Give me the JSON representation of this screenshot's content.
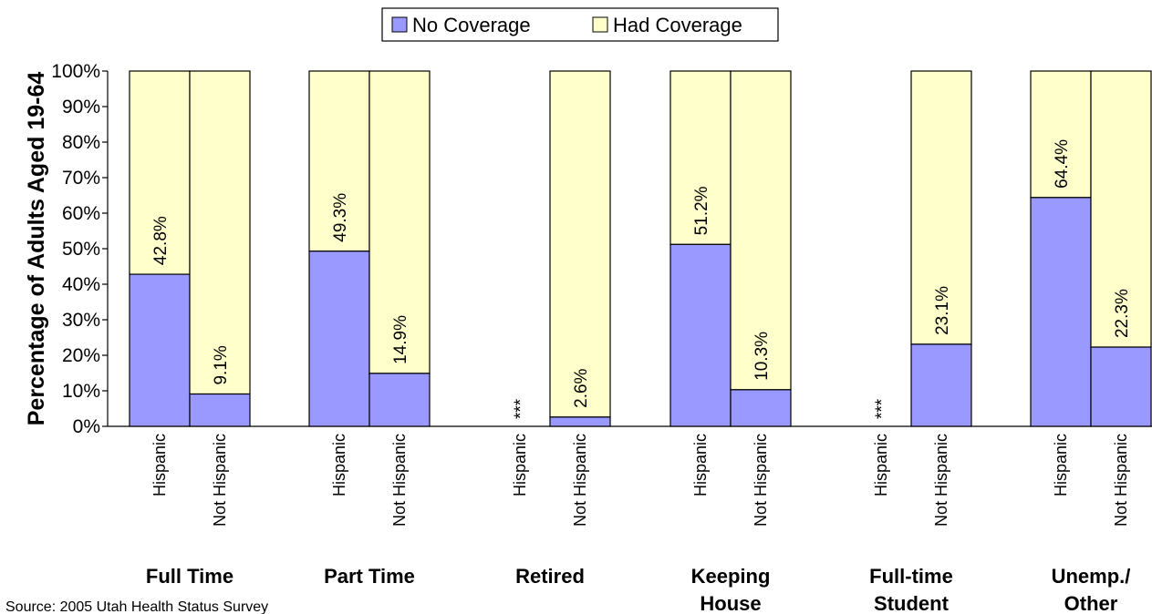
{
  "chart_data": {
    "type": "bar",
    "stacked": true,
    "ylabel": "Percentage of Adults Aged 19-64",
    "ylim": [
      0,
      100
    ],
    "yticks": [
      "0%",
      "10%",
      "20%",
      "30%",
      "40%",
      "50%",
      "60%",
      "70%",
      "80%",
      "90%",
      "100%"
    ],
    "grid": false,
    "legend": {
      "position": "top",
      "entries": [
        "No Coverage",
        "Had Coverage"
      ]
    },
    "colors": {
      "no_coverage": "#9999ff",
      "had_coverage": "#ffffcc",
      "outline": "#000000"
    },
    "source": "Source: 2005 Utah Health Status Survey",
    "groups": [
      {
        "label_lines": [
          "Full Time"
        ],
        "bars": [
          {
            "category": "Hispanic",
            "no_coverage": 42.8,
            "label": "42.8%"
          },
          {
            "category": "Not Hispanic",
            "no_coverage": 9.1,
            "label": "9.1%"
          }
        ]
      },
      {
        "label_lines": [
          "Part Time"
        ],
        "bars": [
          {
            "category": "Hispanic",
            "no_coverage": 49.3,
            "label": "49.3%"
          },
          {
            "category": "Not Hispanic",
            "no_coverage": 14.9,
            "label": "14.9%"
          }
        ]
      },
      {
        "label_lines": [
          "Retired"
        ],
        "bars": [
          {
            "category": "Hispanic",
            "no_coverage": null,
            "label": "***"
          },
          {
            "category": "Not Hispanic",
            "no_coverage": 2.6,
            "label": "2.6%"
          }
        ]
      },
      {
        "label_lines": [
          "Keeping",
          "House"
        ],
        "bars": [
          {
            "category": "Hispanic",
            "no_coverage": 51.2,
            "label": "51.2%"
          },
          {
            "category": "Not Hispanic",
            "no_coverage": 10.3,
            "label": "10.3%"
          }
        ]
      },
      {
        "label_lines": [
          "Full-time",
          "Student"
        ],
        "bars": [
          {
            "category": "Hispanic",
            "no_coverage": null,
            "label": "***"
          },
          {
            "category": "Not Hispanic",
            "no_coverage": 23.1,
            "label": "23.1%"
          }
        ]
      },
      {
        "label_lines": [
          "Unemp./",
          "Other"
        ],
        "bars": [
          {
            "category": "Hispanic",
            "no_coverage": 64.4,
            "label": "64.4%"
          },
          {
            "category": "Not Hispanic",
            "no_coverage": 22.3,
            "label": "22.3%"
          }
        ]
      }
    ]
  }
}
